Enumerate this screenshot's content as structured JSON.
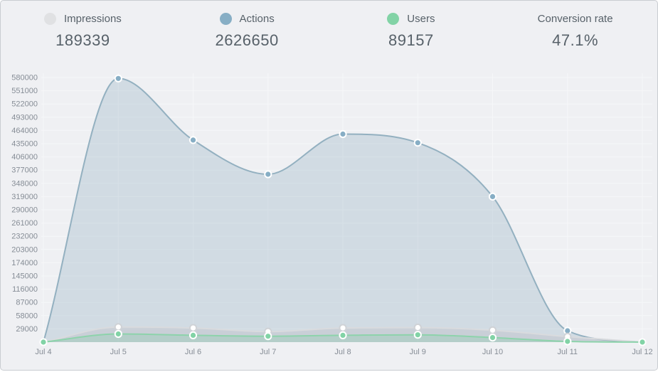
{
  "header": {
    "metrics": [
      {
        "label": "Impressions",
        "value": "189339",
        "dot_color": "#e0e1e3"
      },
      {
        "label": "Actions",
        "value": "2626650",
        "dot_color": "#87aec5"
      },
      {
        "label": "Users",
        "value": "89157",
        "dot_color": "#82d3a6"
      },
      {
        "label": "Conversion rate",
        "value": "47.1%",
        "dot_color": ""
      }
    ]
  },
  "chart_data": {
    "type": "area",
    "title": "",
    "xlabel": "",
    "ylabel": "",
    "x_labels": [
      "Jul 4",
      "Jul 5",
      "Jul 6",
      "Jul 7",
      "Jul 8",
      "Jul 9",
      "Jul 10",
      "Jul 11",
      "Jul 12"
    ],
    "y_ticks": [
      580000,
      551000,
      522000,
      493000,
      464000,
      435000,
      406000,
      377000,
      348000,
      319000,
      290000,
      261000,
      232000,
      203000,
      174000,
      145000,
      116000,
      87000,
      58000,
      29000
    ],
    "ylim": [
      0,
      580000
    ],
    "grid": true,
    "legend_position": "top-header",
    "series": [
      {
        "name": "Actions",
        "values": [
          0,
          578000,
          443000,
          368000,
          456000,
          437000,
          319000,
          25000,
          0
        ],
        "line_color": "#93b0c0",
        "fill_color": "rgba(134,166,186,0.28)",
        "dot_fill": "#87aec5",
        "dot_stroke": "#ffffff"
      },
      {
        "name": "Impressions",
        "values": [
          0,
          33000,
          31000,
          23000,
          31000,
          32000,
          26000,
          12000,
          0
        ],
        "line_color": "#d9dbde",
        "fill_color": "rgba(185,187,193,0.35)",
        "dot_fill": "#ffffff",
        "dot_stroke": "#cfd2d6"
      },
      {
        "name": "Users",
        "values": [
          0,
          18000,
          15000,
          13000,
          15000,
          16000,
          10000,
          1500,
          0
        ],
        "line_color": "#8dd3ab",
        "fill_color": "rgba(133,205,168,0.30)",
        "dot_fill": "#82d3a6",
        "dot_stroke": "#ffffff"
      }
    ],
    "axis_color": "#868d96",
    "grid_color": "#f6f7f9"
  }
}
